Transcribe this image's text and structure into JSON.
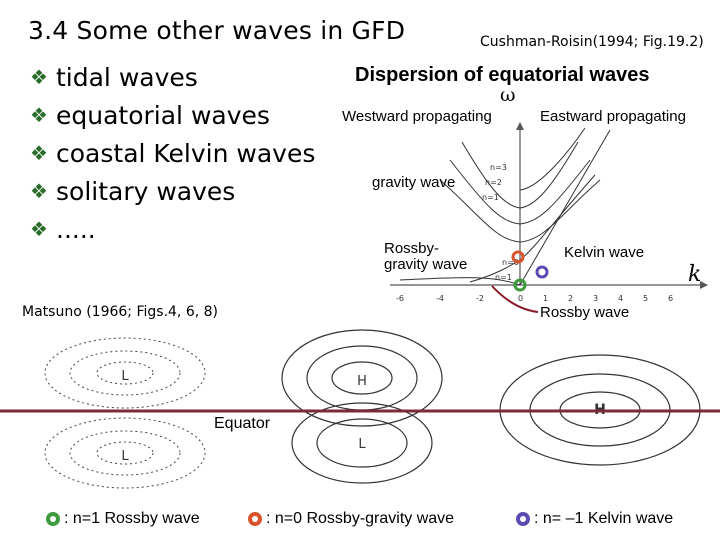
{
  "slide": {
    "title": "3.4 Some other waves in GFD",
    "citation_top": "Cushman-Roisin(1994; Fig.19.2)",
    "citation_bottom": "Matsuno (1966; Figs.4, 6, 8)",
    "bullets": [
      "tidal waves",
      "equatorial waves",
      "coastal Kelvin waves",
      "solitary waves",
      "....."
    ],
    "bullet_marker": "diamond-bullet-icon"
  },
  "dispersion": {
    "title": "Dispersion of equatorial waves",
    "y_symbol": "ω",
    "x_symbol": "k",
    "westward_label": "Westward propagating",
    "eastward_label": "Eastward propagating",
    "gravity_label": "gravity wave",
    "rossby_gravity_label_1": "Rossby-",
    "rossby_gravity_label_2": "gravity wave",
    "kelvin_label": "Kelvin wave",
    "rossby_label": "Rossby wave",
    "x_ticks": [
      "-6",
      "-4",
      "-2",
      "0",
      "1",
      "2",
      "3",
      "4",
      "5",
      "6"
    ],
    "curve_labels": [
      "n=3",
      "n=2",
      "n=1",
      "n=0",
      "n=1"
    ]
  },
  "matsuno_panel": {
    "equator_label": "Equator",
    "high_label": "H",
    "low_label": "L"
  },
  "legend": [
    {
      "text": ": n=1 Rossby wave",
      "color": "#3d9a3d"
    },
    {
      "text": ": n=0 Rossby-gravity wave",
      "color": "#d9542b"
    },
    {
      "text": ": n= –1 Kelvin wave",
      "color": "#5a4bb0"
    }
  ],
  "colors": {
    "equator_line": "#7a2a3a",
    "bullet": "#2a6d2a",
    "rossby_marker": "#3d9a3d",
    "rossby_gravity_marker": "#d9542b",
    "kelvin_marker": "#5a4bb0",
    "callout_line": "#8a1a2a"
  }
}
